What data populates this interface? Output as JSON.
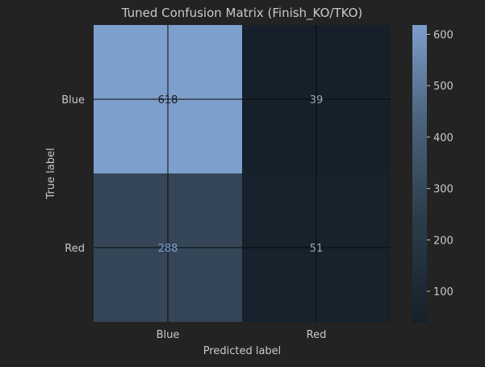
{
  "chart_data": {
    "type": "heatmap",
    "title": "Tuned Confusion Matrix (Finish_KO/TKO)",
    "xlabel": "Predicted label",
    "ylabel": "True label",
    "x_categories": [
      "Blue",
      "Red"
    ],
    "y_categories": [
      "Blue",
      "Red"
    ],
    "values": [
      [
        618,
        39
      ],
      [
        288,
        51
      ]
    ],
    "colorbar": {
      "ticks": [
        "100",
        "200",
        "300",
        "400",
        "500",
        "600"
      ],
      "range": [
        39,
        618
      ]
    },
    "grid": true,
    "colors": {
      "low": "#15202a",
      "high": "#7d9fcc",
      "background": "#232323",
      "dark_text": "#1a1a1a",
      "light_text": "#7d9fcc"
    }
  }
}
